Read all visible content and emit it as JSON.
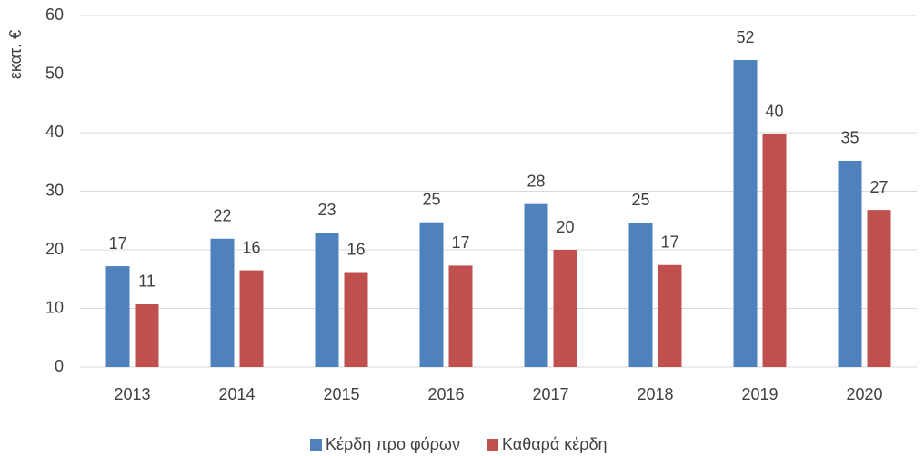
{
  "chart_data": {
    "type": "bar",
    "ylabel": "εκατ. €",
    "categories": [
      "2013",
      "2014",
      "2015",
      "2016",
      "2017",
      "2018",
      "2019",
      "2020"
    ],
    "series": [
      {
        "name": "Κέρδη προ φόρων",
        "color": "#4f81bd",
        "values": [
          17.2,
          21.9,
          22.9,
          24.7,
          27.8,
          24.6,
          52.4,
          35.2
        ],
        "value_labels": [
          "17",
          "22",
          "23",
          "25",
          "28",
          "25",
          "52",
          "35"
        ]
      },
      {
        "name": "Καθαρά κέρδη",
        "color": "#c0504d",
        "values": [
          10.7,
          16.5,
          16.2,
          17.3,
          20.0,
          17.4,
          39.7,
          26.8
        ],
        "value_labels": [
          "11",
          "16",
          "16",
          "17",
          "20",
          "17",
          "40",
          "27"
        ]
      }
    ],
    "ylim": [
      0,
      60
    ],
    "yticks": [
      0,
      10,
      20,
      30,
      40,
      50,
      60
    ],
    "grid": true,
    "legend": "bottom"
  }
}
